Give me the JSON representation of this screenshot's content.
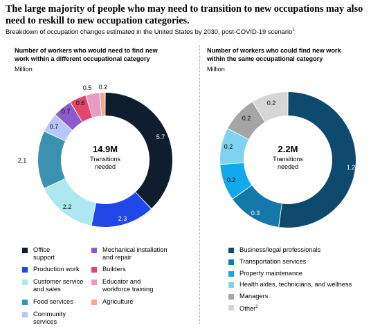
{
  "header": {
    "title": "The large majority of people who may need to transition to new occupations may also need to reskill to new occupation categories.",
    "subtitle": "Breakdown of occupation changes estimated in the United States by 2030, post-COVID-19 scenario",
    "subtitle_note": "1"
  },
  "chart_data": [
    {
      "type": "pie",
      "title": "Number of workers who would need to find new work within a different occupational category",
      "unit": "Million",
      "center_value": "14.9M",
      "center_label": "Transitions needed",
      "categories": [
        "Office support",
        "Production work",
        "Customer service and sales",
        "Food services",
        "Community services",
        "Mechanical installation and repair",
        "Builders",
        "Educator and workforce training",
        "Agriculture"
      ],
      "values": [
        5.7,
        2.3,
        2.2,
        2.1,
        0.7,
        0.7,
        0.6,
        0.5,
        0.2
      ],
      "labels": [
        "5.7",
        "2.3",
        "2.2",
        "2.1",
        "0.7",
        "0.7",
        "0.6",
        "0.5",
        "0.2"
      ],
      "colors": [
        "#0f1d2d",
        "#2247e8",
        "#ade7f0",
        "#3a92ae",
        "#b8c6fb",
        "#8b5bc9",
        "#e2466a",
        "#e79cc6",
        "#f2a88a"
      ],
      "legend": [
        {
          "label": "Office\nsupport",
          "color": "#0f1d2d"
        },
        {
          "label": "Production work",
          "color": "#2247e8"
        },
        {
          "label": "Customer service\nand sales",
          "color": "#ade7f0"
        },
        {
          "label": "Food services",
          "color": "#3a92ae"
        },
        {
          "label": "Community\nservices",
          "color": "#b8c6fb"
        },
        {
          "label": "Mechanical installation\nand repair",
          "color": "#8b5bc9"
        },
        {
          "label": "Builders",
          "color": "#e2466a"
        },
        {
          "label": "Educator and\nworkforce training",
          "color": "#e79cc6"
        },
        {
          "label": "Agriculture",
          "color": "#f2a88a"
        }
      ]
    },
    {
      "type": "pie",
      "title": "Number of workers who could find new work within the same occupational category",
      "unit": "Million",
      "center_value": "2.2M",
      "center_label": "Transitions needed",
      "categories": [
        "Business/legal professionals",
        "Transportation services",
        "Property maintenance",
        "Health aides, technicians, and wellness",
        "Managers",
        "Other"
      ],
      "values": [
        1.2,
        0.3,
        0.2,
        0.2,
        0.2,
        0.2
      ],
      "labels": [
        "1.2",
        "0.3",
        "0.2",
        "0.2",
        "0.2",
        "0.2"
      ],
      "colors": [
        "#0d4a6e",
        "#1478a8",
        "#12a8ec",
        "#7fd3ee",
        "#a5a5a5",
        "#d6d6d6"
      ],
      "legend": [
        {
          "label": "Business/legal professionals",
          "color": "#0d4a6e"
        },
        {
          "label": "Transportation services",
          "color": "#1478a8"
        },
        {
          "label": "Property maintenance",
          "color": "#12a8ec"
        },
        {
          "label": "Health aides, technicians, and wellness",
          "color": "#7fd3ee"
        },
        {
          "label": "Managers",
          "color": "#a5a5a5"
        },
        {
          "label": "Other",
          "color": "#d6d6d6",
          "note": "2"
        }
      ]
    }
  ]
}
